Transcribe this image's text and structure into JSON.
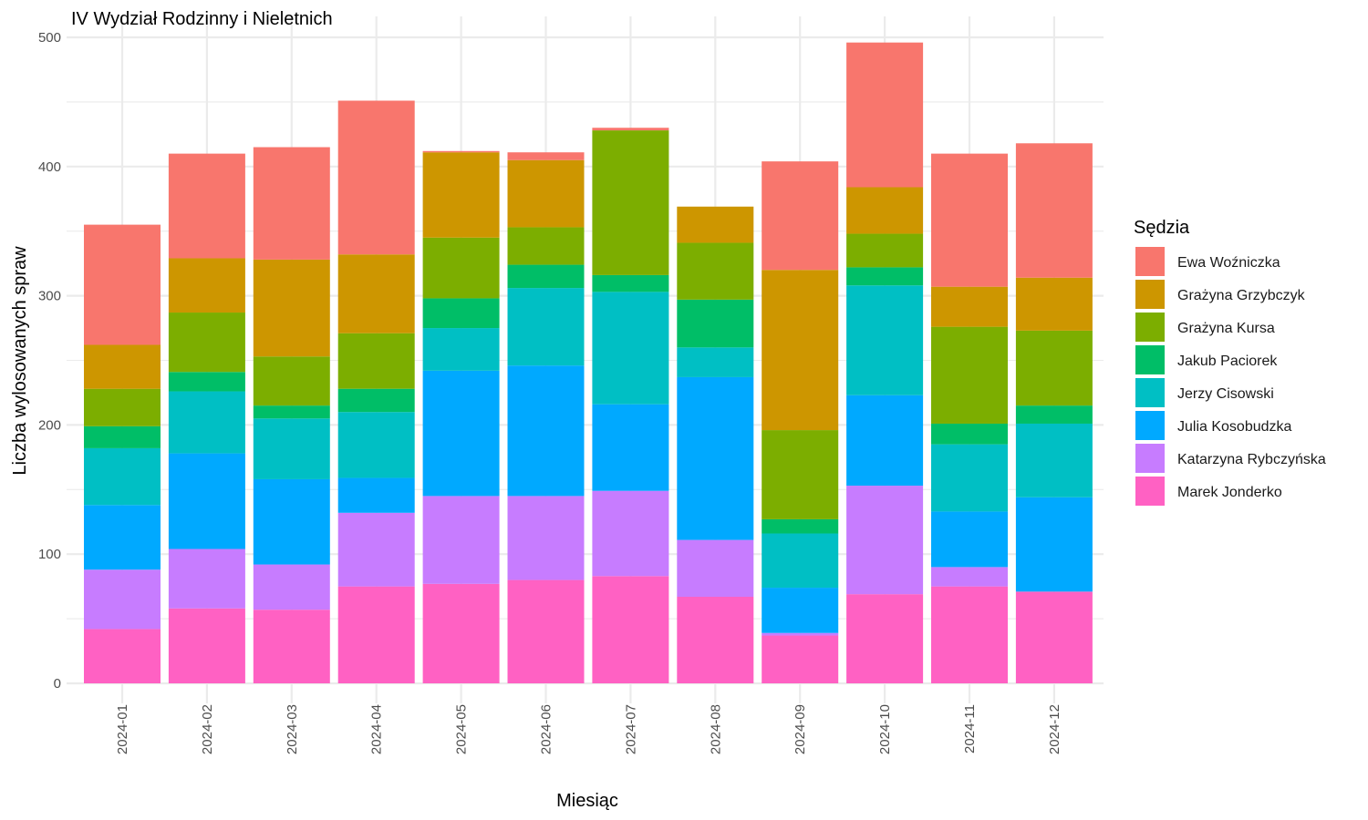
{
  "chart_data": {
    "type": "bar",
    "stacked": true,
    "title": "IV Wydział Rodzinny i Nieletnich",
    "xlabel": "Miesiąc",
    "ylabel": "Liczba wylosowanych spraw",
    "ylim": [
      0,
      500
    ],
    "yticks": [
      0,
      100,
      200,
      300,
      400,
      500
    ],
    "grid": true,
    "legend_title": "Sędzia",
    "legend_position": "right",
    "categories": [
      "2024-01",
      "2024-02",
      "2024-03",
      "2024-04",
      "2024-05",
      "2024-06",
      "2024-07",
      "2024-08",
      "2024-09",
      "2024-10",
      "2024-11",
      "2024-12"
    ],
    "series": [
      {
        "name": "Marek Jonderko",
        "color": "#FF61C3",
        "values": [
          42,
          58,
          57,
          75,
          77,
          80,
          83,
          67,
          37,
          69,
          75,
          71
        ]
      },
      {
        "name": "Katarzyna Rybczyńska",
        "color": "#C77CFF",
        "values": [
          46,
          46,
          35,
          57,
          68,
          65,
          66,
          44,
          2,
          84,
          15,
          0
        ]
      },
      {
        "name": "Julia Kosobudzka",
        "color": "#00A9FF",
        "values": [
          50,
          74,
          66,
          27,
          97,
          101,
          67,
          126,
          35,
          70,
          43,
          73
        ]
      },
      {
        "name": "Jerzy Cisowski",
        "color": "#00BFC4",
        "values": [
          44,
          48,
          47,
          51,
          33,
          60,
          87,
          23,
          42,
          85,
          52,
          57
        ]
      },
      {
        "name": "Jakub Paciorek",
        "color": "#00BE67",
        "values": [
          17,
          15,
          10,
          18,
          23,
          18,
          13,
          37,
          11,
          14,
          16,
          14
        ]
      },
      {
        "name": "Grażyna Kursa",
        "color": "#7CAE00",
        "values": [
          29,
          46,
          38,
          43,
          47,
          29,
          112,
          44,
          69,
          26,
          75,
          58
        ]
      },
      {
        "name": "Grażyna Grzybczyk",
        "color": "#CD9600",
        "values": [
          34,
          42,
          75,
          61,
          66,
          52,
          0,
          28,
          124,
          36,
          31,
          41
        ]
      },
      {
        "name": "Ewa Woźniczka",
        "color": "#F8766D",
        "values": [
          93,
          81,
          87,
          119,
          1,
          6,
          2,
          0,
          84,
          112,
          103,
          104
        ]
      }
    ],
    "legend_order": [
      "Ewa Woźniczka",
      "Grażyna Grzybczyk",
      "Grażyna Kursa",
      "Jakub Paciorek",
      "Jerzy Cisowski",
      "Julia Kosobudzka",
      "Katarzyna Rybczyńska",
      "Marek Jonderko"
    ]
  }
}
